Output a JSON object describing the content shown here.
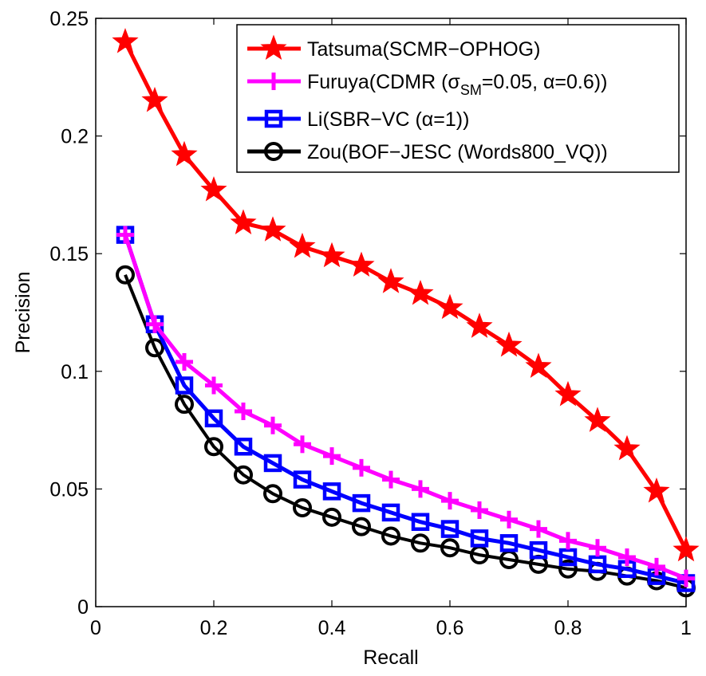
{
  "chart_data": {
    "type": "line",
    "title": "",
    "xlabel": "Recall",
    "ylabel": "Precision",
    "xlim": [
      0,
      1
    ],
    "ylim": [
      0,
      0.25
    ],
    "xticks": [
      0,
      0.2,
      0.4,
      0.6,
      0.8,
      1
    ],
    "xtick_labels": [
      "0",
      "0.2",
      "0.4",
      "0.6",
      "0.8",
      "1"
    ],
    "yticks": [
      0,
      0.05,
      0.1,
      0.15,
      0.2,
      0.25
    ],
    "ytick_labels": [
      "0",
      "0.05",
      "0.1",
      "0.15",
      "0.2",
      "0.25"
    ],
    "grid": false,
    "legend_position": "top-right",
    "x": [
      0.05,
      0.1,
      0.15,
      0.2,
      0.25,
      0.3,
      0.35,
      0.4,
      0.45,
      0.5,
      0.55,
      0.6,
      0.65,
      0.7,
      0.75,
      0.8,
      0.85,
      0.9,
      0.95,
      1.0
    ],
    "series": [
      {
        "name": "Tatsuma(SCMR−OPHOG)",
        "color": "#ff0000",
        "marker": "star",
        "values": [
          0.24,
          0.215,
          0.192,
          0.177,
          0.163,
          0.16,
          0.153,
          0.149,
          0.145,
          0.138,
          0.133,
          0.127,
          0.119,
          0.111,
          0.102,
          0.09,
          0.079,
          0.067,
          0.049,
          0.024
        ]
      },
      {
        "name": "Furuya(CDMR (σSM=0.05, α=0.6))",
        "legend_parts": [
          "Furuya(CDMR (σ",
          "SM",
          "=0.05, α=0.6))"
        ],
        "color": "#ff00ff",
        "marker": "plus",
        "values": [
          0.158,
          0.12,
          0.104,
          0.094,
          0.083,
          0.077,
          0.069,
          0.064,
          0.059,
          0.054,
          0.05,
          0.045,
          0.041,
          0.037,
          0.033,
          0.028,
          0.025,
          0.021,
          0.017,
          0.012
        ]
      },
      {
        "name": "Li(SBR−VC (α=1))",
        "color": "#0000ff",
        "marker": "square",
        "values": [
          0.158,
          0.12,
          0.094,
          0.08,
          0.068,
          0.061,
          0.054,
          0.049,
          0.044,
          0.04,
          0.036,
          0.033,
          0.029,
          0.027,
          0.024,
          0.021,
          0.018,
          0.016,
          0.013,
          0.01
        ]
      },
      {
        "name": "Zou(BOF−JESC (Words800_VQ))",
        "color": "#000000",
        "marker": "circle",
        "values": [
          0.141,
          0.11,
          0.086,
          0.068,
          0.056,
          0.048,
          0.042,
          0.038,
          0.034,
          0.03,
          0.027,
          0.025,
          0.022,
          0.02,
          0.018,
          0.016,
          0.015,
          0.013,
          0.011,
          0.008
        ]
      }
    ]
  }
}
